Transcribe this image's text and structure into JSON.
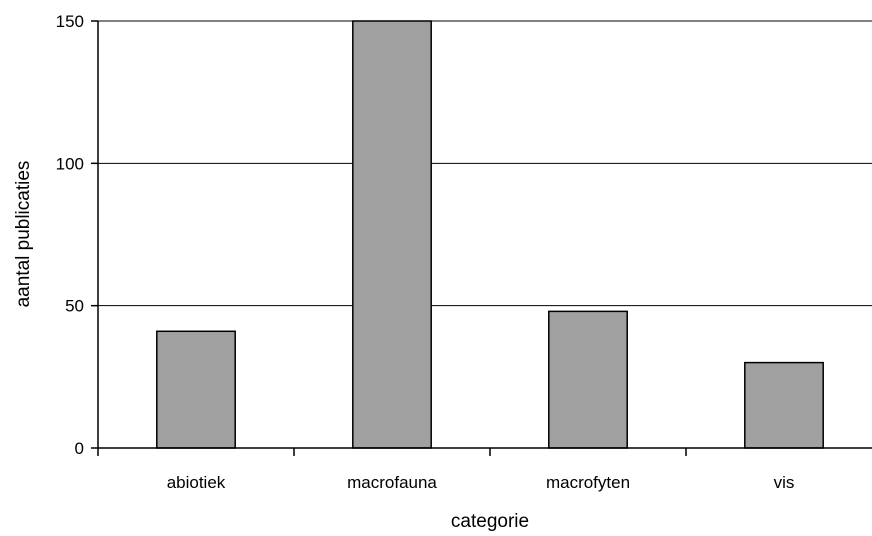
{
  "chart_data": {
    "type": "bar",
    "categories": [
      "abiotiek",
      "macrofauna",
      "macrofyten",
      "vis"
    ],
    "values": [
      41,
      150,
      48,
      30
    ],
    "xlabel": "categorie",
    "ylabel": "aantal publicaties",
    "ylim": [
      0,
      150
    ],
    "yticks": [
      0,
      50,
      100,
      150
    ],
    "grid": true,
    "legend": "none",
    "colors": {
      "bar": "#a0a0a0",
      "bar_edge": "#000000",
      "grid": "#000000"
    }
  }
}
